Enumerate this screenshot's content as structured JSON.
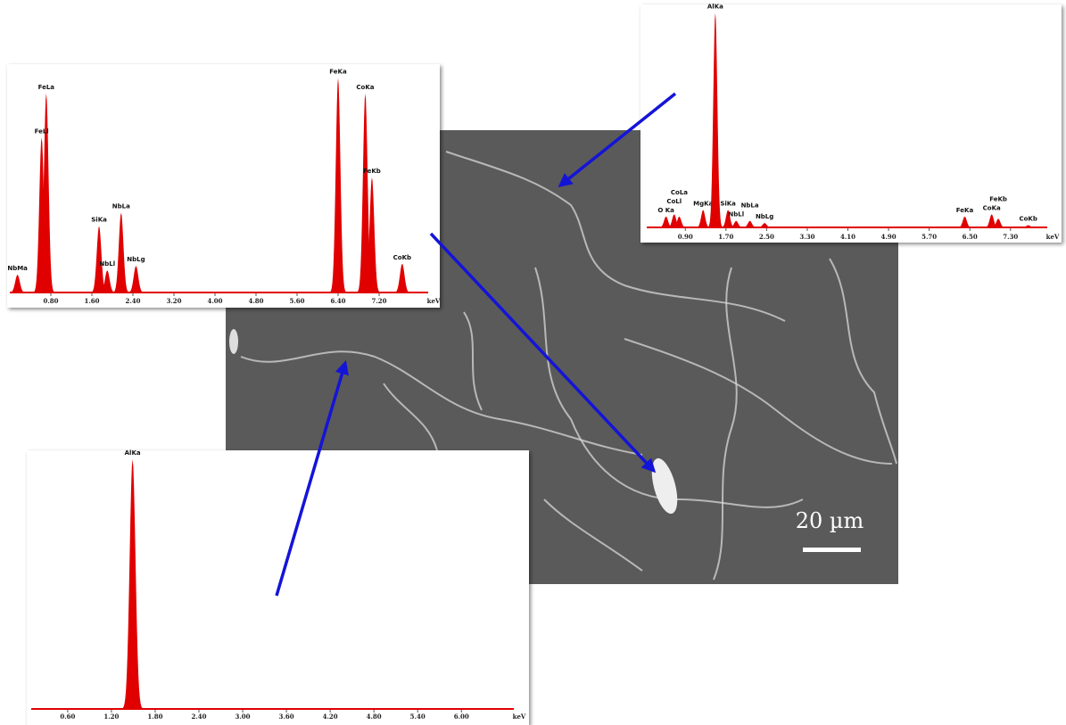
{
  "chart_data": [
    {
      "type": "spectrum",
      "color": "#e00000",
      "x_label": "keV",
      "xlim": [
        0,
        8.4
      ],
      "ylim": [
        0,
        100
      ],
      "xticks": [
        {
          "value": 0.8,
          "label": "0.80"
        },
        {
          "value": 1.6,
          "label": "1.60"
        },
        {
          "value": 2.4,
          "label": "2.40"
        },
        {
          "value": 3.2,
          "label": "3.20"
        },
        {
          "value": 4.0,
          "label": "4.00"
        },
        {
          "value": 4.8,
          "label": "4.80"
        },
        {
          "value": 5.6,
          "label": "5.60"
        },
        {
          "value": 6.4,
          "label": "6.40"
        },
        {
          "value": 7.2,
          "label": "7.20"
        }
      ],
      "peaks": [
        {
          "label": "NbMa",
          "x": 0.15,
          "value": 8
        },
        {
          "label": "FeLa",
          "x": 0.71,
          "value": 90
        },
        {
          "label": "FeLl",
          "x": 0.62,
          "value": 70
        },
        {
          "label": "SiKa",
          "x": 1.74,
          "value": 30
        },
        {
          "label": "NbLl",
          "x": 1.9,
          "value": 10
        },
        {
          "label": "NbLa",
          "x": 2.17,
          "value": 36
        },
        {
          "label": "NbLg",
          "x": 2.46,
          "value": 12
        },
        {
          "label": "FeKa",
          "x": 6.4,
          "value": 97
        },
        {
          "label": "CoKa",
          "x": 6.93,
          "value": 90
        },
        {
          "label": "FeKb",
          "x": 7.06,
          "value": 52
        },
        {
          "label": "CoKb",
          "x": 7.65,
          "value": 13
        }
      ]
    },
    {
      "type": "spectrum",
      "color": "#e00000",
      "x_label": "keV",
      "xlim": [
        0.14,
        8.27
      ],
      "ylim": [
        0,
        100
      ],
      "xticks": [
        {
          "value": 0.9,
          "label": "0.90"
        },
        {
          "value": 1.7,
          "label": "1.70"
        },
        {
          "value": 2.5,
          "label": "2.50"
        },
        {
          "value": 3.3,
          "label": "3.30"
        },
        {
          "value": 4.1,
          "label": "4.10"
        },
        {
          "value": 4.9,
          "label": "4.90"
        },
        {
          "value": 5.7,
          "label": "5.70"
        },
        {
          "value": 6.5,
          "label": "6.50"
        },
        {
          "value": 7.3,
          "label": "7.30"
        }
      ],
      "peaks": [
        {
          "label": "O Ka",
          "x": 0.52,
          "value": 5
        },
        {
          "label": "CoLl",
          "x": 0.68,
          "value": 6
        },
        {
          "label": "CoLa",
          "x": 0.78,
          "value": 5
        },
        {
          "label": "MgKa",
          "x": 1.25,
          "value": 8
        },
        {
          "label": "AlKa",
          "x": 1.49,
          "value": 99
        },
        {
          "label": "SiKa",
          "x": 1.74,
          "value": 8
        },
        {
          "label": "NbLl",
          "x": 1.9,
          "value": 3
        },
        {
          "label": "NbLa",
          "x": 2.17,
          "value": 3
        },
        {
          "label": "NbLg",
          "x": 2.46,
          "value": 2
        },
        {
          "label": "FeKa",
          "x": 6.4,
          "value": 5
        },
        {
          "label": "CoKa",
          "x": 6.93,
          "value": 6
        },
        {
          "label": "FeKb",
          "x": 7.06,
          "value": 4
        },
        {
          "label": "CoKb",
          "x": 7.65,
          "value": 1
        }
      ]
    },
    {
      "type": "spectrum",
      "color": "#e00000",
      "x_label": "keV",
      "xlim": [
        0.1,
        6.89
      ],
      "ylim": [
        0,
        100
      ],
      "xticks": [
        {
          "value": 0.6,
          "label": "0.60"
        },
        {
          "value": 1.2,
          "label": "1.20"
        },
        {
          "value": 1.8,
          "label": "1.80"
        },
        {
          "value": 2.4,
          "label": "2.40"
        },
        {
          "value": 3.0,
          "label": "3.00"
        },
        {
          "value": 3.6,
          "label": "3.60"
        },
        {
          "value": 4.2,
          "label": "4.20"
        },
        {
          "value": 4.8,
          "label": "4.80"
        },
        {
          "value": 5.4,
          "label": "5.40"
        },
        {
          "value": 6.0,
          "label": "6.00"
        }
      ],
      "peaks": [
        {
          "label": "AlKa",
          "x": 1.49,
          "value": 99
        }
      ]
    }
  ],
  "scale_bar": "20 µm"
}
